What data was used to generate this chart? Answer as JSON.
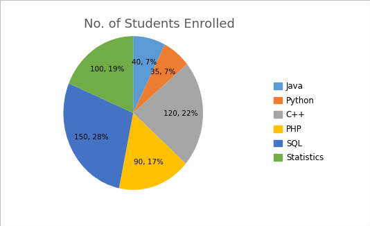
{
  "title": "No. of Students Enrolled",
  "labels": [
    "Java",
    "Python",
    "C++",
    "PHP",
    "SQL",
    "Statistics"
  ],
  "values": [
    40,
    35,
    120,
    90,
    150,
    100
  ],
  "colors": [
    "#5B9BD5",
    "#ED7D31",
    "#A5A5A5",
    "#FFC000",
    "#4472C4",
    "#70AD47"
  ],
  "title_fontsize": 13,
  "title_color": "#595959",
  "background_color": "#FFFFFF",
  "outer_bg": "#D9D9D9",
  "legend_labels": [
    "Java",
    "Python",
    "C++",
    "PHP",
    "SQL",
    "Statistics"
  ],
  "legend_fontsize": 8.5,
  "label_fontsize": 7.5
}
